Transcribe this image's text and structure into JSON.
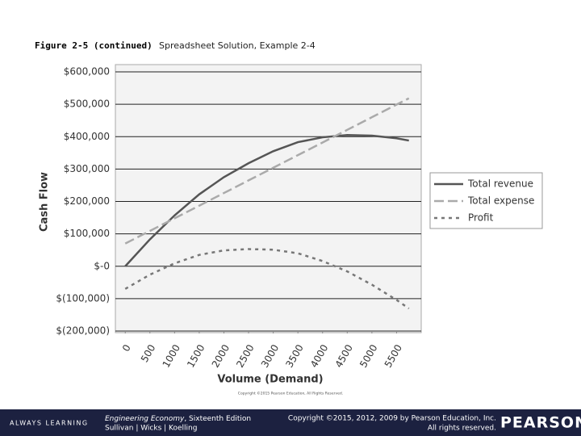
{
  "chart_data": {
    "type": "line",
    "figure_label": "Figure 2-5 (continued)",
    "title": "Spreadsheet Solution, Example 2-4",
    "y_label": "Cash Flow",
    "x_label": "Volume (Demand)",
    "annotation": "Copyright ©2015 Pearson Education, All Rights Reserved.",
    "x": [
      0,
      500,
      1000,
      1500,
      2000,
      2500,
      3000,
      3500,
      4000,
      4500,
      5000,
      5500,
      5750
    ],
    "series": [
      {
        "name": "Total revenue",
        "color": "#555555",
        "style": "solid",
        "values": [
          0,
          83000,
          157000,
          222000,
          275000,
          318000,
          355000,
          383000,
          398000,
          405000,
          403000,
          395000,
          388000
        ]
      },
      {
        "name": "Total expense",
        "color": "#aaaaaa",
        "style": "dashed",
        "values": [
          70000,
          109000,
          148000,
          187000,
          226000,
          265000,
          304000,
          343000,
          382000,
          421000,
          460000,
          499000,
          518500
        ]
      },
      {
        "name": "Profit",
        "color": "#777777",
        "style": "dotted",
        "values": [
          -70000,
          -26000,
          9000,
          35000,
          49000,
          53000,
          51000,
          40000,
          16000,
          -16000,
          -57000,
          -104000,
          -130500
        ]
      }
    ],
    "xlim": [
      -200,
      6000
    ],
    "xticks": [
      0,
      500,
      1000,
      1500,
      2000,
      2500,
      3000,
      3500,
      4000,
      4500,
      5000,
      5500
    ],
    "ylim": [
      -200000,
      600000
    ],
    "yticks": [
      {
        "value": -200000,
        "label": "$(200,000)"
      },
      {
        "value": -100000,
        "label": "$(100,000)"
      },
      {
        "value": 0,
        "label": "$-0"
      },
      {
        "value": 100000,
        "label": "$100,000"
      },
      {
        "value": 200000,
        "label": "$200,000"
      },
      {
        "value": 300000,
        "label": "$300,000"
      },
      {
        "value": 400000,
        "label": "$400,000"
      },
      {
        "value": 500000,
        "label": "$500,000"
      },
      {
        "value": 600000,
        "label": "$600,000"
      }
    ],
    "grid": true,
    "legend": "right"
  },
  "footer": {
    "brand_tagline": "ALWAYS LEARNING",
    "book_title": "Engineering Economy",
    "edition": ", Sixteenth Edition",
    "authors": "Sullivan | Wicks | Koelling",
    "copyright": "Copyright ©2015, 2012, 2009 by Pearson Education, Inc.",
    "rights": "All rights reserved.",
    "publisher": "PEARSON"
  }
}
